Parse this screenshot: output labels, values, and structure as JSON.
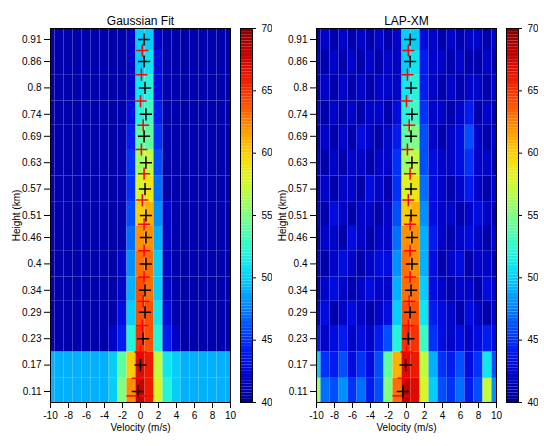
{
  "chart_data": [
    {
      "type": "heatmap",
      "title": "Gaussian Fit",
      "x_label": "Velocity (m/s)",
      "y_label": "Height (km)",
      "xlim": [
        -10,
        10
      ],
      "xticks": [
        -10,
        -8,
        -6,
        -4,
        -2,
        0,
        2,
        4,
        6,
        8,
        10
      ],
      "ylim": [
        0.085,
        0.935
      ],
      "yticks": [
        0.11,
        0.17,
        0.23,
        0.29,
        0.34,
        0.4,
        0.46,
        0.51,
        0.57,
        0.63,
        0.69,
        0.74,
        0.8,
        0.86,
        0.91
      ],
      "cells": {
        "x": [
          -10,
          -9,
          -8,
          -7,
          -6,
          -5,
          -4,
          -3,
          -2,
          -1,
          0,
          1,
          2,
          3,
          4,
          5,
          6,
          7,
          8,
          9,
          10
        ],
        "y": [
          0.11,
          0.17,
          0.23,
          0.29,
          0.34,
          0.4,
          0.46,
          0.51,
          0.57,
          0.63,
          0.69,
          0.74,
          0.8,
          0.86,
          0.91
        ],
        "values": [
          [
            49,
            49,
            49,
            49,
            49,
            49,
            49,
            50,
            55,
            62,
            68,
            66,
            58,
            52,
            50,
            49,
            49,
            49,
            49,
            49,
            49
          ],
          [
            49,
            49,
            49,
            49,
            49,
            49,
            49,
            50,
            54,
            60,
            67,
            66,
            57,
            51,
            50,
            49,
            49,
            49,
            49,
            49,
            49
          ],
          [
            41,
            41,
            41,
            41,
            41,
            41,
            41,
            42,
            44,
            52,
            65,
            64,
            52,
            44,
            42,
            41,
            41,
            41,
            41,
            41,
            41
          ],
          [
            41,
            41,
            41,
            41,
            41,
            41,
            41,
            41,
            43,
            50,
            64,
            64,
            51,
            43,
            41,
            41,
            41,
            41,
            41,
            41,
            41
          ],
          [
            41,
            41,
            41,
            41,
            41,
            41,
            41,
            41,
            42,
            49,
            64,
            63,
            50,
            42,
            41,
            41,
            41,
            41,
            41,
            41,
            41
          ],
          [
            41,
            41,
            41,
            41,
            41,
            41,
            41,
            41,
            42,
            48,
            63,
            63,
            50,
            42,
            41,
            41,
            41,
            41,
            41,
            41,
            41
          ],
          [
            41,
            41,
            41,
            41,
            41,
            41,
            41,
            41,
            41,
            47,
            62,
            62,
            49,
            42,
            41,
            41,
            41,
            41,
            41,
            41,
            41
          ],
          [
            41,
            41,
            41,
            41,
            41,
            41,
            41,
            41,
            41,
            46,
            60,
            61,
            48,
            42,
            41,
            41,
            41,
            41,
            41,
            41,
            41
          ],
          [
            41,
            41,
            41,
            41,
            41,
            41,
            41,
            41,
            41,
            45,
            58,
            59,
            47,
            41,
            41,
            41,
            41,
            41,
            41,
            41,
            41
          ],
          [
            41,
            41,
            41,
            41,
            41,
            41,
            41,
            41,
            41,
            45,
            56,
            57,
            46,
            41,
            41,
            41,
            41,
            41,
            41,
            41,
            41
          ],
          [
            41,
            41,
            41,
            41,
            41,
            41,
            41,
            41,
            41,
            44,
            54,
            54,
            45,
            41,
            41,
            41,
            41,
            41,
            41,
            41,
            41
          ],
          [
            41,
            41,
            41,
            41,
            41,
            41,
            41,
            41,
            41,
            43,
            52,
            53,
            44,
            41,
            41,
            41,
            41,
            41,
            41,
            41,
            41
          ],
          [
            41,
            41,
            41,
            41,
            41,
            41,
            41,
            41,
            41,
            42,
            51,
            52,
            43,
            41,
            41,
            41,
            41,
            41,
            41,
            41,
            41
          ],
          [
            41,
            41,
            41,
            41,
            41,
            41,
            41,
            41,
            41,
            42,
            50,
            51,
            43,
            41,
            41,
            41,
            41,
            41,
            41,
            41,
            41
          ],
          [
            41,
            41,
            41,
            41,
            41,
            41,
            41,
            41,
            41,
            42,
            50,
            50,
            42,
            41,
            41,
            41,
            41,
            41,
            41,
            41,
            41
          ]
        ]
      },
      "colorbar": {
        "range": [
          40,
          70
        ],
        "ticks": [
          40,
          45,
          50,
          55,
          60,
          65,
          70
        ]
      },
      "series": [
        {
          "color": "black",
          "marker": "plus",
          "x": [
            -0.3,
            0.0,
            0.3,
            0.5,
            0.5,
            0.6,
            0.6,
            0.6,
            0.5,
            0.6,
            0.4,
            0.6,
            0.5,
            0.4,
            0.4
          ],
          "y": [
            0.11,
            0.17,
            0.23,
            0.29,
            0.34,
            0.4,
            0.46,
            0.51,
            0.57,
            0.63,
            0.69,
            0.74,
            0.8,
            0.86,
            0.91
          ]
        },
        {
          "color": "red",
          "marker": "plus",
          "x": [
            -0.3,
            0.0,
            0.2,
            0.3,
            0.4,
            0.4,
            0.4,
            0.2,
            0.4,
            0.1,
            0.3,
            0.0,
            0.1,
            0.2
          ],
          "y": [
            0.14,
            0.2,
            0.26,
            0.315,
            0.37,
            0.43,
            0.49,
            0.545,
            0.605,
            0.66,
            0.715,
            0.77,
            0.83,
            0.885
          ]
        }
      ],
      "error_bars": [
        {
          "y": 0.1,
          "xmin": -1.5,
          "xmax": 1.5,
          "color": "red"
        }
      ]
    },
    {
      "type": "heatmap",
      "title": "LAP-XM",
      "x_label": "Velocity (m/s)",
      "y_label": "Height (km)",
      "xlim": [
        -10,
        10
      ],
      "xticks": [
        -10,
        -8,
        -6,
        -4,
        -2,
        0,
        2,
        4,
        6,
        8,
        10
      ],
      "ylim": [
        0.085,
        0.935
      ],
      "yticks": [
        0.11,
        0.17,
        0.23,
        0.29,
        0.34,
        0.4,
        0.46,
        0.51,
        0.57,
        0.63,
        0.69,
        0.74,
        0.8,
        0.86,
        0.91
      ],
      "cells": {
        "x": [
          -10,
          -9,
          -8,
          -7,
          -6,
          -5,
          -4,
          -3,
          -2,
          -1,
          0,
          1,
          2,
          3,
          4,
          5,
          6,
          7,
          8,
          9,
          10
        ],
        "y": [
          0.11,
          0.17,
          0.23,
          0.29,
          0.34,
          0.4,
          0.46,
          0.51,
          0.57,
          0.63,
          0.69,
          0.74,
          0.8,
          0.86,
          0.91
        ],
        "values": [
          [
            56,
            47,
            46,
            48,
            45,
            47,
            44,
            46,
            55,
            63,
            68,
            67,
            58,
            50,
            46,
            45,
            47,
            44,
            46,
            57,
            48
          ],
          [
            50,
            45,
            44,
            46,
            43,
            45,
            43,
            46,
            54,
            61,
            67,
            66,
            57,
            49,
            45,
            44,
            46,
            43,
            45,
            51,
            46
          ],
          [
            44,
            42,
            43,
            44,
            42,
            43,
            42,
            44,
            46,
            52,
            65,
            65,
            53,
            45,
            43,
            42,
            43,
            42,
            43,
            44,
            43
          ],
          [
            42,
            43,
            41,
            42,
            43,
            42,
            41,
            42,
            43,
            50,
            64,
            64,
            51,
            44,
            43,
            42,
            41,
            43,
            42,
            41,
            42
          ],
          [
            41,
            42,
            43,
            42,
            41,
            42,
            43,
            42,
            42,
            49,
            63,
            63,
            50,
            43,
            42,
            41,
            42,
            42,
            41,
            43,
            42
          ],
          [
            42,
            41,
            42,
            43,
            42,
            41,
            42,
            43,
            43,
            48,
            63,
            62,
            49,
            43,
            41,
            42,
            43,
            41,
            42,
            42,
            41
          ],
          [
            41,
            42,
            42,
            41,
            43,
            42,
            41,
            42,
            42,
            47,
            62,
            62,
            49,
            44,
            42,
            41,
            42,
            43,
            42,
            41,
            42
          ],
          [
            42,
            41,
            43,
            42,
            41,
            42,
            42,
            41,
            42,
            46,
            60,
            61,
            48,
            43,
            42,
            42,
            41,
            42,
            43,
            42,
            41
          ],
          [
            41,
            42,
            41,
            42,
            42,
            41,
            43,
            42,
            41,
            45,
            58,
            59,
            47,
            43,
            42,
            41,
            42,
            44,
            42,
            41,
            42
          ],
          [
            42,
            41,
            42,
            41,
            42,
            42,
            41,
            42,
            42,
            45,
            56,
            57,
            46,
            43,
            42,
            42,
            43,
            45,
            42,
            42,
            41
          ],
          [
            41,
            42,
            41,
            42,
            41,
            43,
            42,
            41,
            42,
            44,
            54,
            55,
            46,
            42,
            41,
            42,
            43,
            46,
            42,
            41,
            42
          ],
          [
            42,
            41,
            42,
            41,
            42,
            41,
            42,
            42,
            41,
            43,
            52,
            53,
            45,
            42,
            42,
            41,
            42,
            44,
            41,
            42,
            41
          ],
          [
            41,
            42,
            41,
            42,
            41,
            42,
            41,
            42,
            42,
            42,
            51,
            52,
            44,
            42,
            41,
            42,
            41,
            42,
            42,
            41,
            42
          ],
          [
            42,
            41,
            42,
            41,
            42,
            41,
            42,
            41,
            42,
            42,
            50,
            51,
            44,
            42,
            42,
            41,
            42,
            41,
            41,
            42,
            41
          ],
          [
            41,
            42,
            41,
            42,
            41,
            42,
            41,
            42,
            41,
            42,
            50,
            50,
            43,
            42,
            41,
            42,
            41,
            42,
            42,
            41,
            42
          ]
        ]
      },
      "colorbar": {
        "range": [
          40,
          70
        ],
        "ticks": [
          40,
          45,
          50,
          55,
          60,
          65,
          70
        ]
      },
      "series": [
        {
          "color": "black",
          "marker": "plus",
          "x": [
            -0.4,
            -0.1,
            0.2,
            0.4,
            0.5,
            0.6,
            0.6,
            0.5,
            0.5,
            0.6,
            0.5,
            0.6,
            0.5,
            0.4,
            0.4
          ],
          "y": [
            0.11,
            0.17,
            0.23,
            0.29,
            0.34,
            0.4,
            0.46,
            0.51,
            0.57,
            0.63,
            0.69,
            0.74,
            0.8,
            0.86,
            0.91
          ]
        },
        {
          "color": "red",
          "marker": "plus",
          "x": [
            -0.3,
            0.0,
            0.2,
            0.3,
            0.4,
            0.4,
            0.4,
            0.2,
            0.4,
            0.1,
            0.3,
            0.0,
            0.1,
            0.2
          ],
          "y": [
            0.14,
            0.2,
            0.26,
            0.315,
            0.37,
            0.43,
            0.49,
            0.545,
            0.605,
            0.66,
            0.715,
            0.77,
            0.83,
            0.885
          ]
        }
      ],
      "error_bars": [
        {
          "y": 0.1,
          "xmin": -1.5,
          "xmax": 1.5,
          "color": "red"
        }
      ]
    }
  ]
}
